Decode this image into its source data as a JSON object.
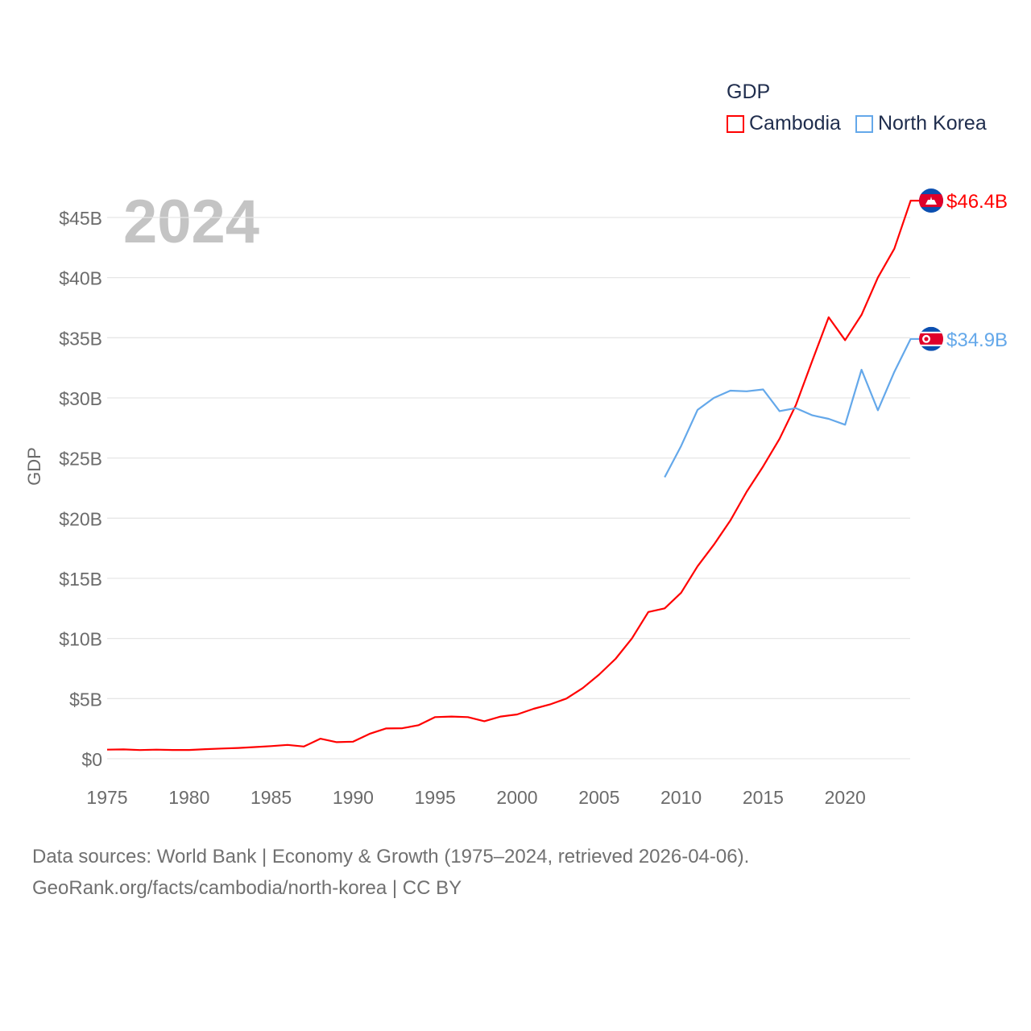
{
  "chart_data": {
    "type": "line",
    "title": "GDP",
    "ylabel": "GDP",
    "xlabel": "",
    "year_label": "2024",
    "xlim": [
      1975,
      2024
    ],
    "ylim": [
      0,
      46.4
    ],
    "x_ticks": [
      1975,
      1980,
      1985,
      1990,
      1995,
      2000,
      2005,
      2010,
      2015,
      2020
    ],
    "y_ticks": [
      0,
      5,
      10,
      15,
      20,
      25,
      30,
      35,
      40,
      45
    ],
    "y_tick_labels": [
      "$0",
      "$5B",
      "$10B",
      "$15B",
      "$20B",
      "$25B",
      "$30B",
      "$35B",
      "$40B",
      "$45B"
    ],
    "grid": true,
    "legend_placement": "top-right",
    "series": [
      {
        "name": "Cambodia",
        "color": "#ff0000",
        "end_label": "$46.4B",
        "flag": "cambodia-flag",
        "x": [
          1975,
          1976,
          1977,
          1978,
          1979,
          1980,
          1981,
          1982,
          1983,
          1984,
          1985,
          1986,
          1987,
          1988,
          1989,
          1990,
          1991,
          1992,
          1993,
          1994,
          1995,
          1996,
          1997,
          1998,
          1999,
          2000,
          2001,
          2002,
          2003,
          2004,
          2005,
          2006,
          2007,
          2008,
          2009,
          2010,
          2011,
          2012,
          2013,
          2014,
          2015,
          2016,
          2017,
          2018,
          2019,
          2020,
          2021,
          2022,
          2023,
          2024
        ],
        "values": [
          0.76,
          0.78,
          0.72,
          0.76,
          0.73,
          0.73,
          0.8,
          0.85,
          0.9,
          0.97,
          1.05,
          1.15,
          1.02,
          1.67,
          1.38,
          1.42,
          2.07,
          2.52,
          2.54,
          2.79,
          3.46,
          3.51,
          3.46,
          3.12,
          3.51,
          3.68,
          4.15,
          4.51,
          5.0,
          5.87,
          7.0,
          8.3,
          10.0,
          12.2,
          12.5,
          13.8,
          16.0,
          17.8,
          19.8,
          22.2,
          24.3,
          26.6,
          29.4,
          33.1,
          36.7,
          34.8,
          36.9,
          40.0,
          42.4,
          46.4
        ]
      },
      {
        "name": "North Korea",
        "color": "#64a8ea",
        "end_label": "$34.9B",
        "flag": "north-korea-flag",
        "x": [
          2009,
          2010,
          2011,
          2012,
          2013,
          2014,
          2015,
          2016,
          2017,
          2018,
          2019,
          2020,
          2021,
          2022,
          2023,
          2024
        ],
        "values": [
          23.4,
          26.0,
          29.0,
          30.0,
          30.6,
          30.55,
          30.7,
          28.9,
          29.15,
          28.55,
          28.26,
          27.77,
          32.34,
          28.97,
          32.16,
          34.9
        ]
      }
    ]
  },
  "legend": {
    "title": "GDP",
    "items": [
      "Cambodia",
      "North Korea"
    ]
  },
  "source": {
    "line1": "Data sources: World Bank | Economy & Growth (1975–2024, retrieved 2026-04-06).",
    "line2": "GeoRank.org/facts/cambodia/north-korea | CC BY"
  }
}
